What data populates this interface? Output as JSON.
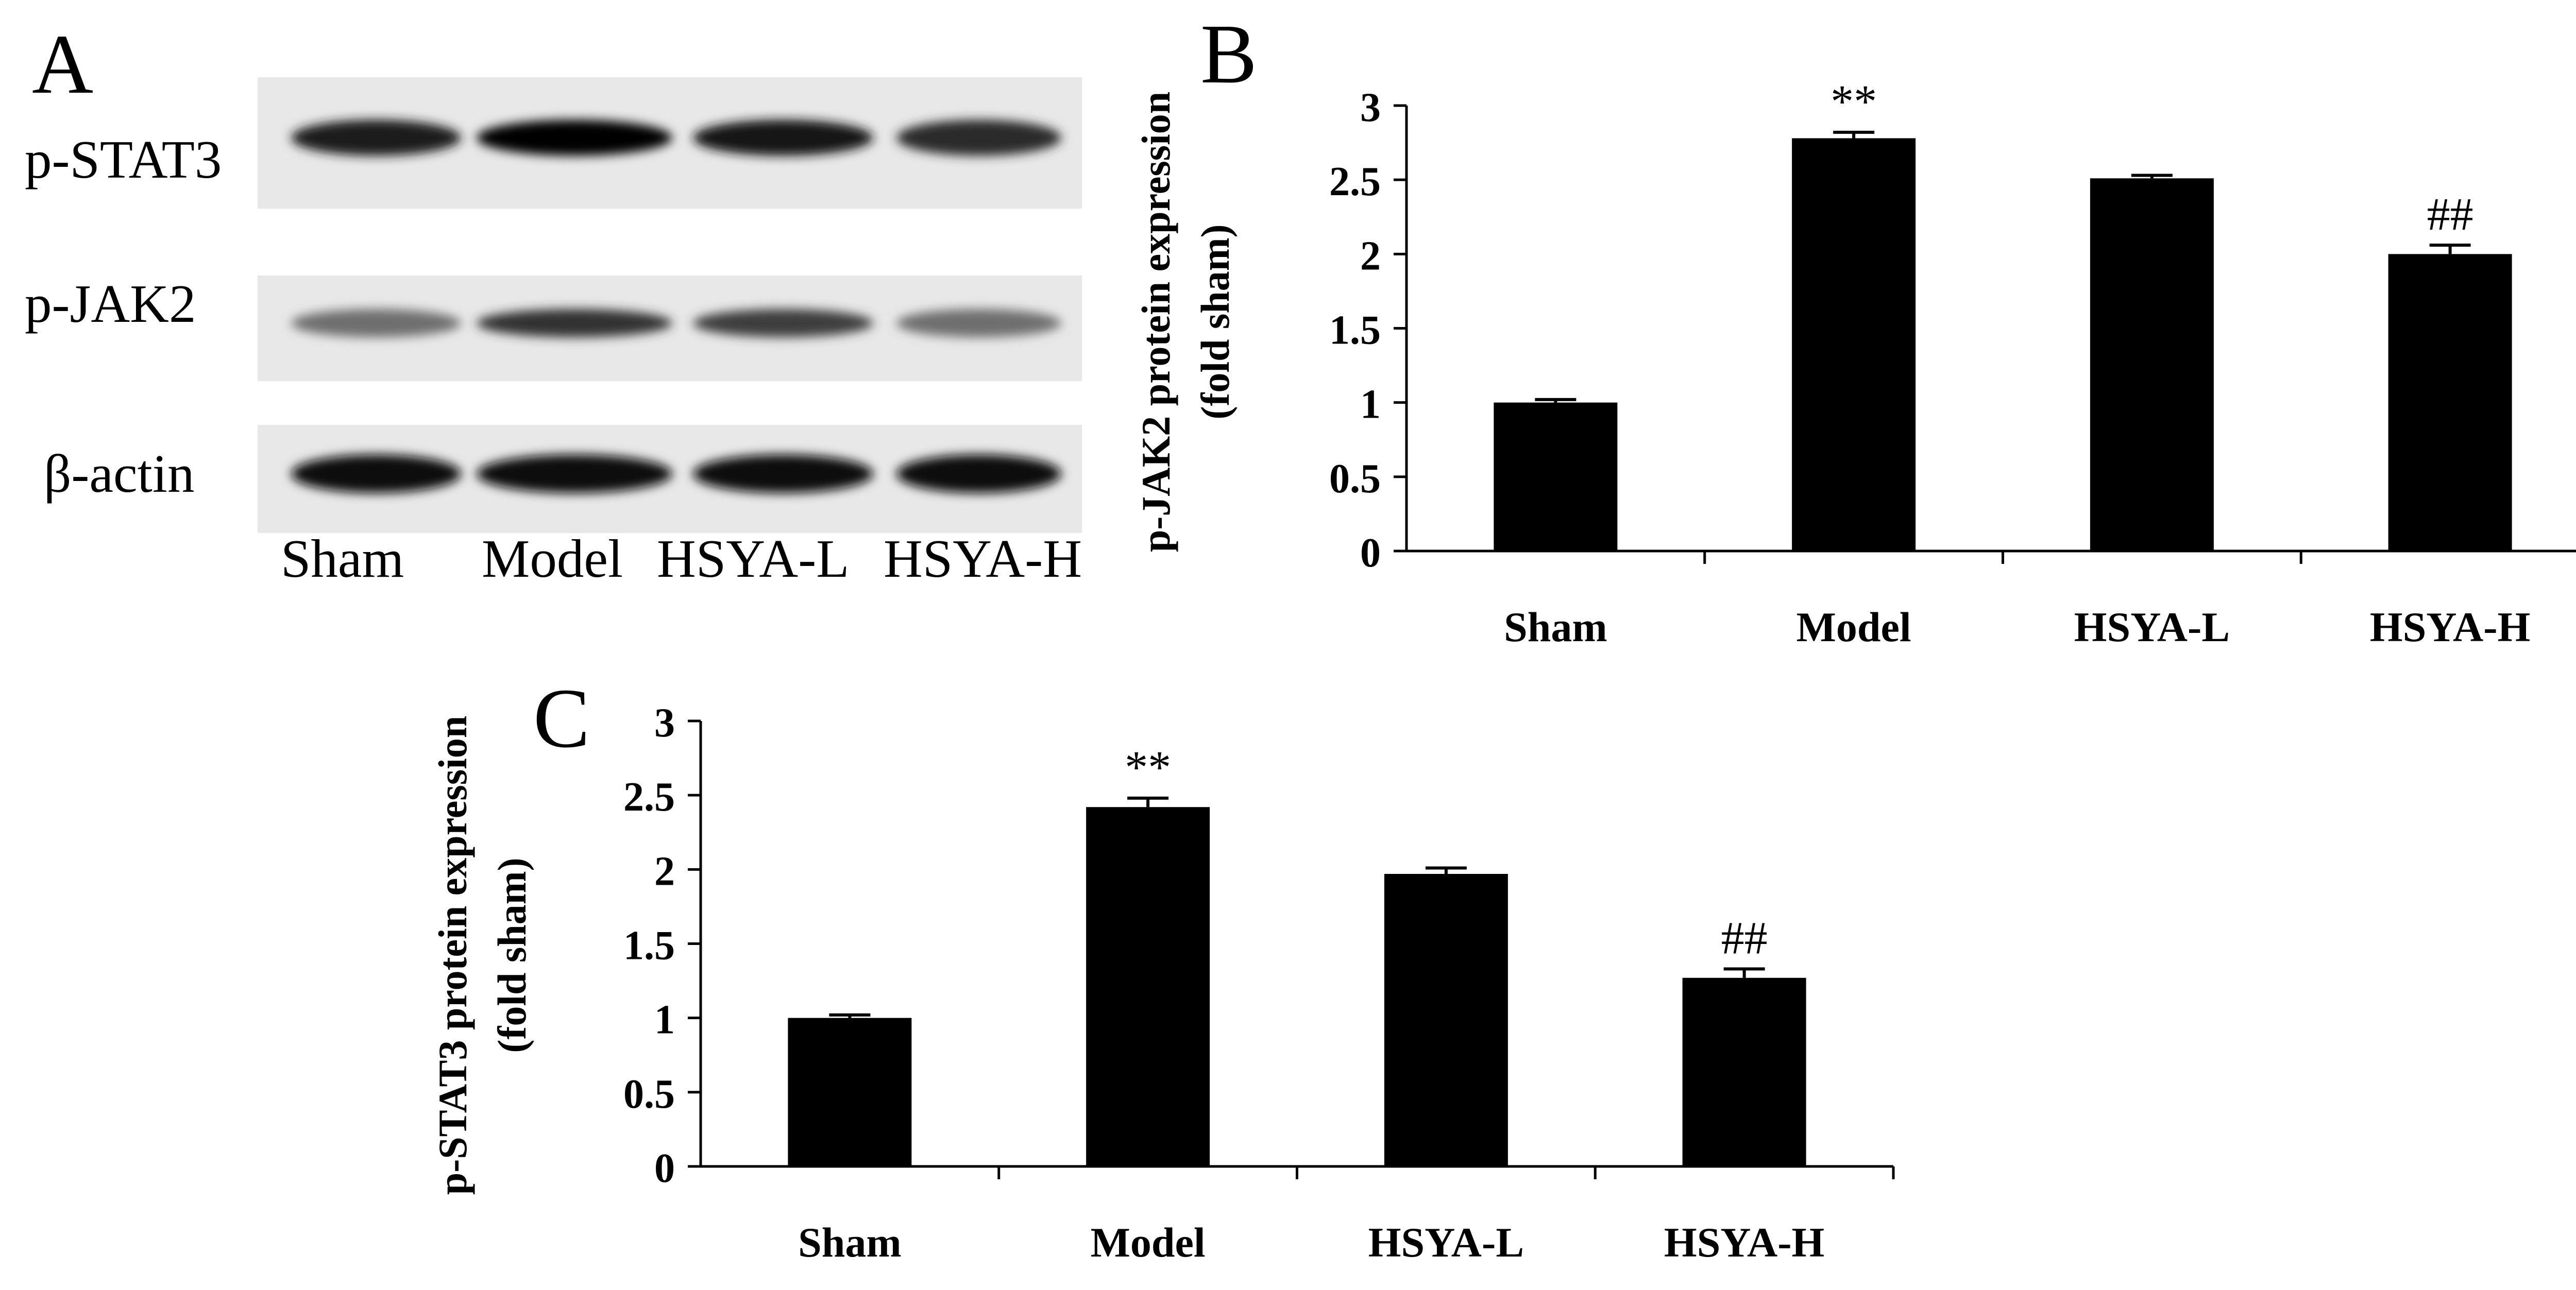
{
  "panel_a": {
    "label": "A",
    "rows": [
      {
        "name": "p-STAT3",
        "intensity": [
          0.85,
          0.97,
          0.9,
          0.78
        ]
      },
      {
        "name": "p-JAK2",
        "intensity": [
          0.45,
          0.75,
          0.7,
          0.45
        ]
      },
      {
        "name": "β-actin",
        "intensity": [
          0.95,
          0.92,
          0.95,
          0.95
        ]
      }
    ],
    "lanes": [
      "Sham",
      "Model",
      "HSYA-L",
      "HSYA-H"
    ]
  },
  "panel_b_label": "B",
  "panel_c_label": "C",
  "chart_data": [
    {
      "type": "bar",
      "panel": "B",
      "ylabel_line1": "p-JAK2 protein expression",
      "ylabel_line2": "(fold sham)",
      "categories": [
        "Sham",
        "Model",
        "HSYA-L",
        "HSYA-H"
      ],
      "values": [
        1.0,
        2.78,
        2.51,
        2.0
      ],
      "errors": [
        0.02,
        0.04,
        0.02,
        0.06
      ],
      "annotations": [
        "",
        "**",
        "",
        "##"
      ],
      "ylim": [
        0,
        3
      ],
      "yticks": [
        "0",
        "0.5",
        "1",
        "1.5",
        "2",
        "2.5",
        "3"
      ],
      "grid": false,
      "colors": {
        "bar": "#000000"
      }
    },
    {
      "type": "bar",
      "panel": "C",
      "ylabel_line1": "p-STAT3 protein expression",
      "ylabel_line2": "(fold sham)",
      "categories": [
        "Sham",
        "Model",
        "HSYA-L",
        "HSYA-H"
      ],
      "values": [
        1.0,
        2.42,
        1.97,
        1.27
      ],
      "errors": [
        0.02,
        0.06,
        0.04,
        0.06
      ],
      "annotations": [
        "",
        "**",
        "",
        "##"
      ],
      "ylim": [
        0,
        3
      ],
      "yticks": [
        "0",
        "0.5",
        "1",
        "1.5",
        "2",
        "2.5",
        "3"
      ],
      "grid": false,
      "colors": {
        "bar": "#000000"
      }
    }
  ]
}
